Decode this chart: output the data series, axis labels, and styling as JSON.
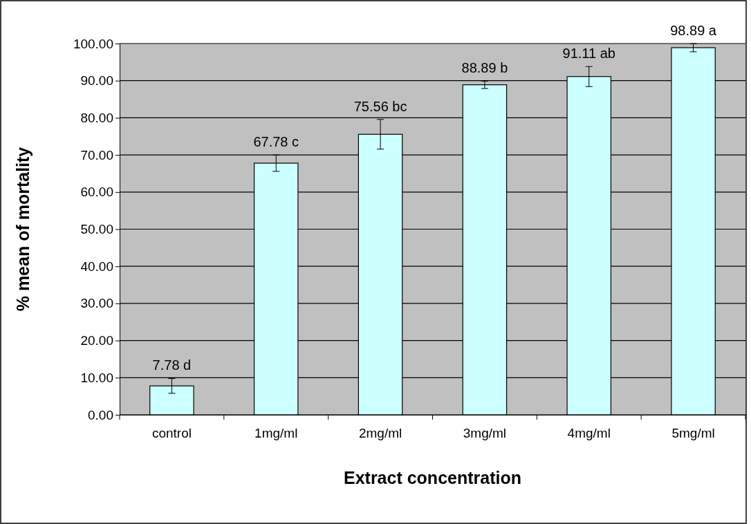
{
  "chart_data": {
    "type": "bar",
    "xlabel": "Extract concentration",
    "ylabel": "% mean of mortality",
    "categories": [
      "control",
      "1mg/ml",
      "2mg/ml",
      "3mg/ml",
      "4mg/ml",
      "5mg/ml"
    ],
    "values": [
      7.78,
      67.78,
      75.56,
      88.89,
      91.11,
      98.89
    ],
    "errors": [
      2.0,
      2.2,
      4.0,
      1.0,
      2.7,
      1.1
    ],
    "value_labels": [
      "7.78 d",
      "67.78 c",
      "75.56 bc",
      "88.89 b",
      "91.11 ab",
      "98.89 a"
    ],
    "color": "#ccffff",
    "ylim": [
      0,
      100
    ],
    "yticks": [
      {
        "value": 0,
        "label": "0.00"
      },
      {
        "value": 10,
        "label": "10.00"
      },
      {
        "value": 20,
        "label": "20.00"
      },
      {
        "value": 30,
        "label": "30.00"
      },
      {
        "value": 40,
        "label": "40.00"
      },
      {
        "value": 50,
        "label": "50.00"
      },
      {
        "value": 60,
        "label": "60.00"
      },
      {
        "value": 70,
        "label": "70.00"
      },
      {
        "value": 80,
        "label": "80.00"
      },
      {
        "value": 90,
        "label": "90.00"
      },
      {
        "value": 100,
        "label": "100.00"
      }
    ],
    "grid": "y"
  }
}
